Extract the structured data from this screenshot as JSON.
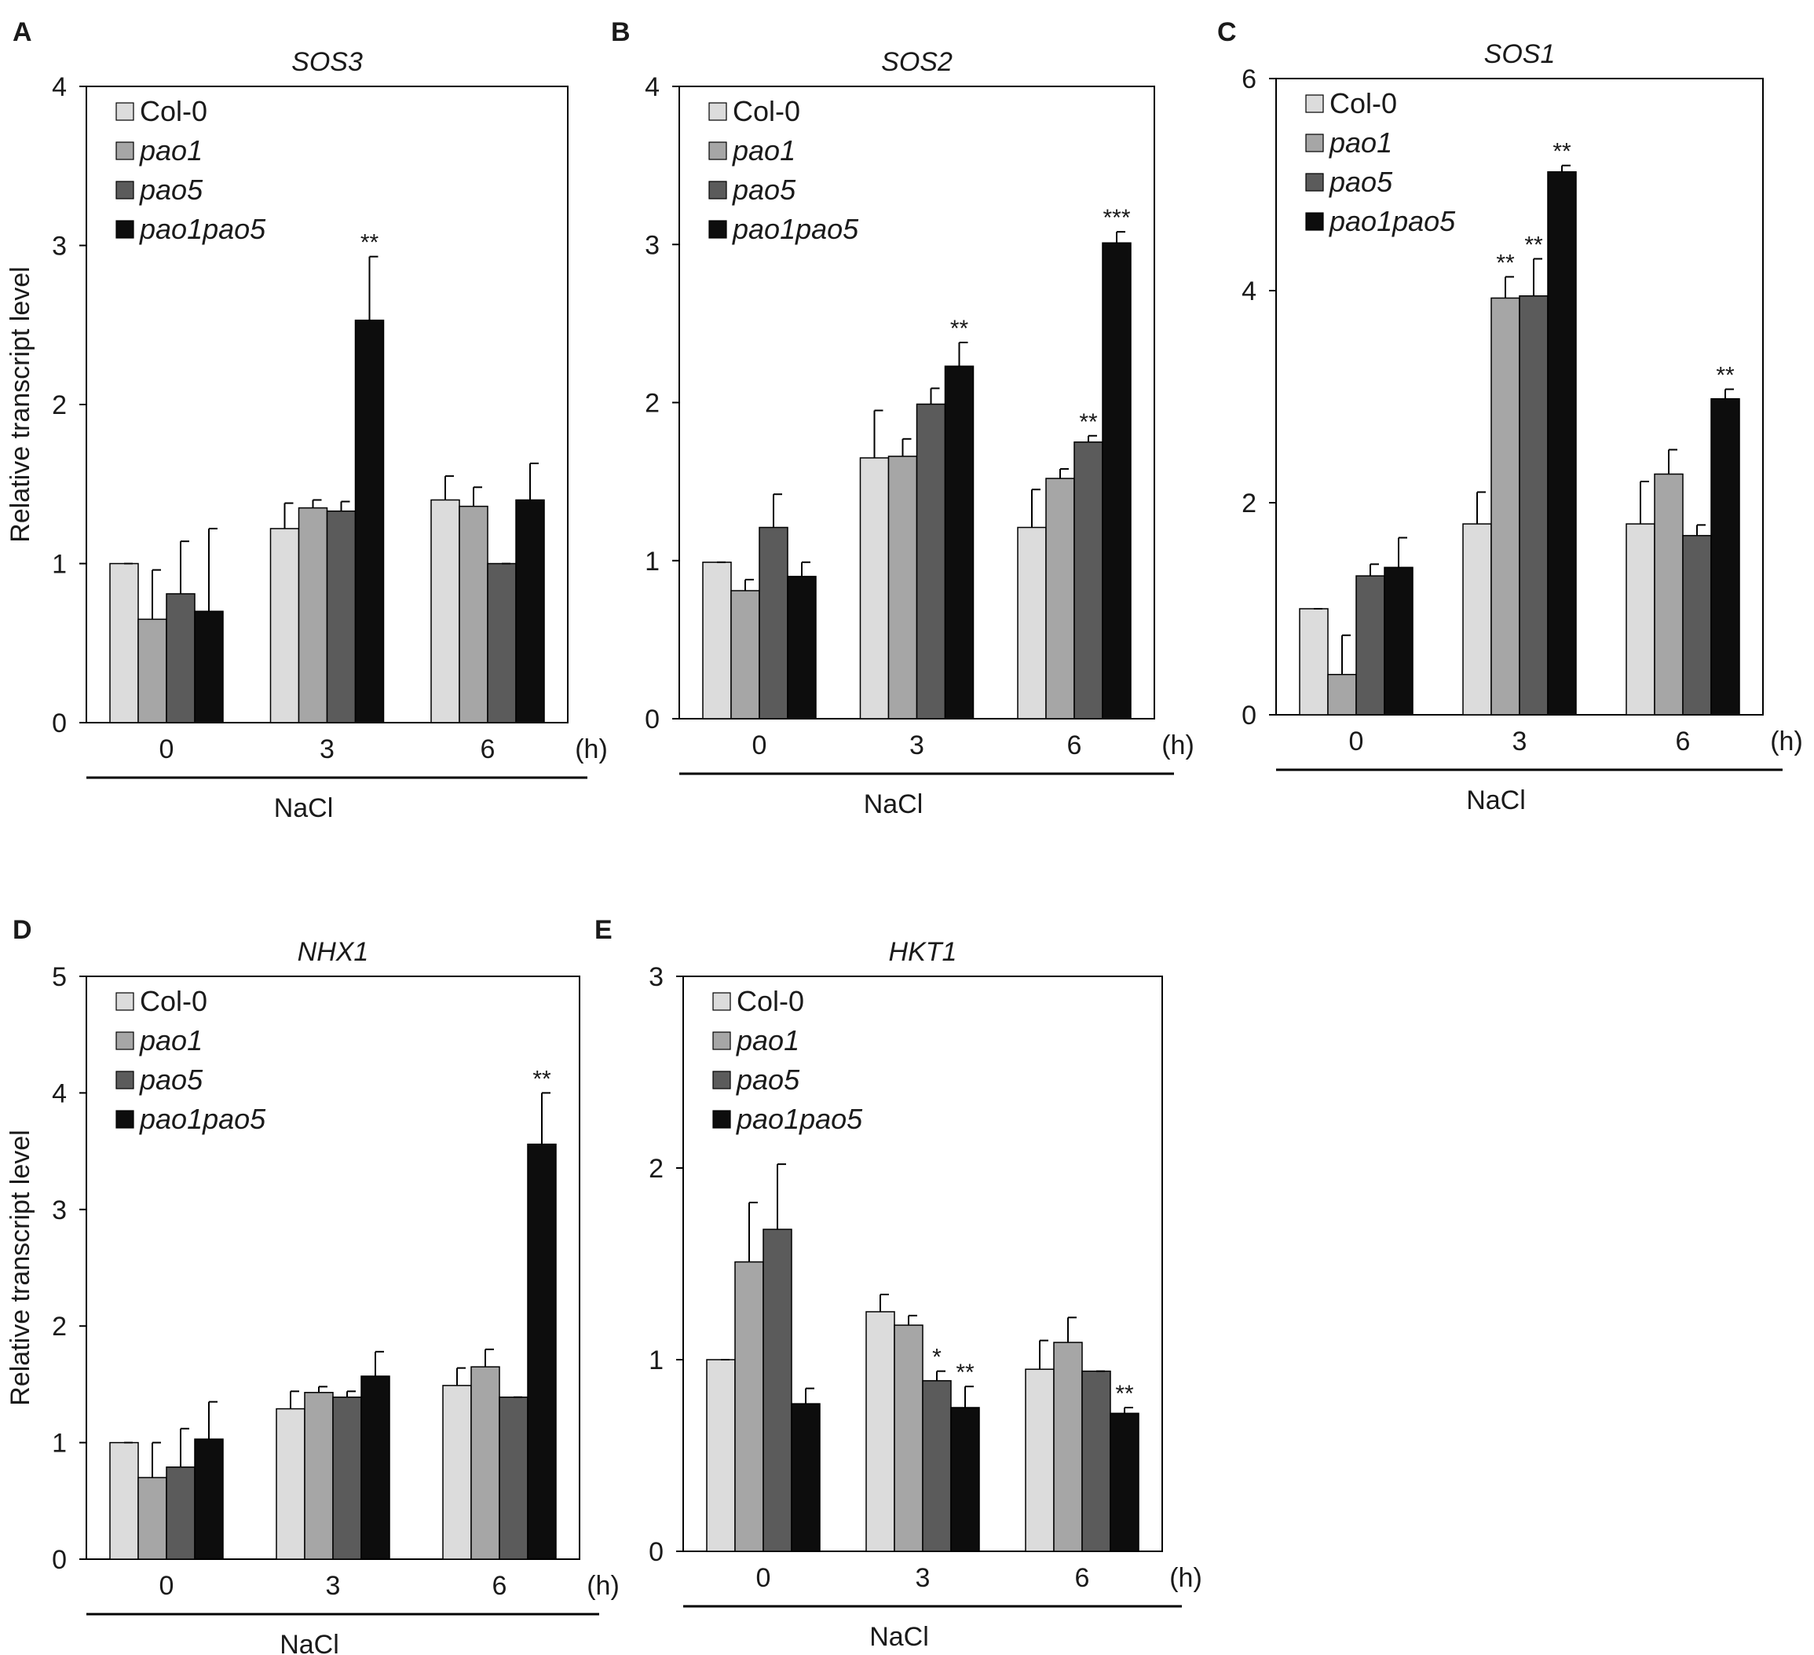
{
  "figure": {
    "ylabel": "Relative transcript level",
    "xunit": "(h)",
    "treatment": "NaCl"
  },
  "legend": [
    {
      "label": "Col-0",
      "italic": false,
      "color": "#dcdcdc"
    },
    {
      "label": "pao1",
      "italic": true,
      "color": "#a6a6a6"
    },
    {
      "label": "pao5",
      "italic": true,
      "color": "#5b5b5b"
    },
    {
      "label": "pao1pao5",
      "italic": true,
      "color": "#0d0d0d"
    }
  ],
  "chart_data": [
    {
      "panel": "A",
      "title": "SOS3",
      "type": "bar",
      "categories": [
        "0",
        "3",
        "6"
      ],
      "ylim": [
        0,
        4
      ],
      "yticks": [
        0,
        1,
        2,
        3,
        4
      ],
      "xlabel": "NaCl",
      "xunit": "(h)",
      "ylabel": "Relative transcript level",
      "series": [
        {
          "name": "Col-0",
          "values": [
            1.0,
            1.22,
            1.4
          ],
          "errors": [
            0.0,
            0.16,
            0.15
          ]
        },
        {
          "name": "pao1",
          "values": [
            0.65,
            1.35,
            1.36
          ],
          "errors": [
            0.31,
            0.05,
            0.12
          ]
        },
        {
          "name": "pao5",
          "values": [
            0.81,
            1.33,
            1.0
          ],
          "errors": [
            0.33,
            0.06,
            0.0
          ]
        },
        {
          "name": "pao1pao5",
          "values": [
            0.7,
            2.53,
            1.4
          ],
          "errors": [
            0.52,
            0.4,
            0.23
          ]
        }
      ],
      "annotations": [
        {
          "text": "**",
          "category": "3",
          "series": "pao1pao5"
        }
      ]
    },
    {
      "panel": "B",
      "title": "SOS2",
      "type": "bar",
      "categories": [
        "0",
        "3",
        "6"
      ],
      "ylim": [
        0,
        4
      ],
      "yticks": [
        0,
        1,
        2,
        3,
        4
      ],
      "xlabel": "NaCl",
      "xunit": "(h)",
      "ylabel": "",
      "series": [
        {
          "name": "Col-0",
          "values": [
            0.99,
            1.65,
            1.21
          ],
          "errors": [
            0.0,
            0.3,
            0.24
          ]
        },
        {
          "name": "pao1",
          "values": [
            0.81,
            1.66,
            1.52
          ],
          "errors": [
            0.07,
            0.11,
            0.06
          ]
        },
        {
          "name": "pao5",
          "values": [
            1.21,
            1.99,
            1.75
          ],
          "errors": [
            0.21,
            0.1,
            0.04
          ]
        },
        {
          "name": "pao1pao5",
          "values": [
            0.9,
            2.23,
            3.01
          ],
          "errors": [
            0.09,
            0.15,
            0.07
          ]
        }
      ],
      "annotations": [
        {
          "text": "**",
          "category": "3",
          "series": "pao1pao5"
        },
        {
          "text": "**",
          "category": "6",
          "series": "pao5"
        },
        {
          "text": "***",
          "category": "6",
          "series": "pao1pao5"
        }
      ]
    },
    {
      "panel": "C",
      "title": "SOS1",
      "type": "bar",
      "categories": [
        "0",
        "3",
        "6"
      ],
      "ylim": [
        0,
        6
      ],
      "yticks": [
        0,
        2,
        4,
        6
      ],
      "xlabel": "NaCl",
      "xunit": "(h)",
      "ylabel": "",
      "series": [
        {
          "name": "Col-0",
          "values": [
            1.0,
            1.8,
            1.8
          ],
          "errors": [
            0.0,
            0.3,
            0.4
          ]
        },
        {
          "name": "pao1",
          "values": [
            0.38,
            3.93,
            2.27
          ],
          "errors": [
            0.37,
            0.2,
            0.23
          ]
        },
        {
          "name": "pao5",
          "values": [
            1.31,
            3.95,
            1.69
          ],
          "errors": [
            0.11,
            0.35,
            0.1
          ]
        },
        {
          "name": "pao1pao5",
          "values": [
            1.39,
            5.12,
            2.98
          ],
          "errors": [
            0.28,
            0.06,
            0.09
          ]
        }
      ],
      "annotations": [
        {
          "text": "**",
          "category": "3",
          "series": "pao1"
        },
        {
          "text": "**",
          "category": "3",
          "series": "pao5"
        },
        {
          "text": "**",
          "category": "3",
          "series": "pao1pao5"
        },
        {
          "text": "**",
          "category": "6",
          "series": "pao1pao5"
        }
      ]
    },
    {
      "panel": "D",
      "title": "NHX1",
      "type": "bar",
      "categories": [
        "0",
        "3",
        "6"
      ],
      "ylim": [
        0,
        5
      ],
      "yticks": [
        0,
        1,
        2,
        3,
        4,
        5
      ],
      "xlabel": "NaCl",
      "xunit": "(h)",
      "ylabel": "Relative transcript level",
      "series": [
        {
          "name": "Col-0",
          "values": [
            1.0,
            1.29,
            1.49
          ],
          "errors": [
            0.0,
            0.15,
            0.15
          ]
        },
        {
          "name": "pao1",
          "values": [
            0.7,
            1.43,
            1.65
          ],
          "errors": [
            0.3,
            0.05,
            0.15
          ]
        },
        {
          "name": "pao5",
          "values": [
            0.79,
            1.39,
            1.39
          ],
          "errors": [
            0.33,
            0.05,
            0.0
          ]
        },
        {
          "name": "pao1pao5",
          "values": [
            1.03,
            1.57,
            3.56
          ],
          "errors": [
            0.32,
            0.21,
            0.44
          ]
        }
      ],
      "annotations": [
        {
          "text": "**",
          "category": "6",
          "series": "pao1pao5"
        }
      ]
    },
    {
      "panel": "E",
      "title": "HKT1",
      "type": "bar",
      "categories": [
        "0",
        "3",
        "6"
      ],
      "ylim": [
        0,
        3
      ],
      "yticks": [
        0,
        1,
        2,
        3
      ],
      "xlabel": "NaCl",
      "xunit": "(h)",
      "ylabel": "",
      "series": [
        {
          "name": "Col-0",
          "values": [
            1.0,
            1.25,
            0.95
          ],
          "errors": [
            0.0,
            0.09,
            0.15
          ]
        },
        {
          "name": "pao1",
          "values": [
            1.51,
            1.18,
            1.09
          ],
          "errors": [
            0.31,
            0.05,
            0.13
          ]
        },
        {
          "name": "pao5",
          "values": [
            1.68,
            0.89,
            0.94
          ],
          "errors": [
            0.34,
            0.05,
            0.0
          ]
        },
        {
          "name": "pao1pao5",
          "values": [
            0.77,
            0.75,
            0.72
          ],
          "errors": [
            0.08,
            0.11,
            0.03
          ]
        }
      ],
      "annotations": [
        {
          "text": "*",
          "category": "3",
          "series": "pao5"
        },
        {
          "text": "**",
          "category": "3",
          "series": "pao1pao5"
        },
        {
          "text": "**",
          "category": "6",
          "series": "pao1pao5"
        }
      ]
    }
  ]
}
